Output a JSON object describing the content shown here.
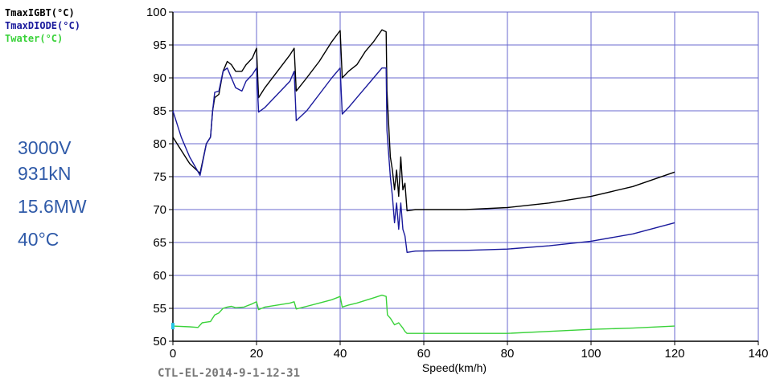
{
  "chart_data": {
    "type": "line",
    "title": "",
    "xlabel": "Speed(km/h)",
    "ylabel": "",
    "xlim": [
      0,
      140
    ],
    "ylim": [
      50,
      100
    ],
    "x_ticks": [
      0,
      20,
      40,
      60,
      80,
      100,
      120,
      140
    ],
    "y_ticks": [
      50,
      55,
      60,
      65,
      70,
      75,
      80,
      85,
      90,
      95,
      100
    ],
    "grid": true,
    "legend_position": "top-left",
    "footer": "CTL-EL-2014-9-1-12-31",
    "annotations": [
      "3000V",
      "931kN",
      "15.6MW",
      "40°C"
    ],
    "annotation_color": "#2f5aa8",
    "series": [
      {
        "name": "TmaxIGBT(°C)",
        "color": "#000000",
        "points": [
          [
            0,
            81
          ],
          [
            2,
            79
          ],
          [
            4,
            77
          ],
          [
            6.5,
            75.5
          ],
          [
            8,
            80
          ],
          [
            9,
            81
          ],
          [
            9.5,
            85
          ],
          [
            10,
            87
          ],
          [
            11,
            87.5
          ],
          [
            12,
            91
          ],
          [
            13,
            92.5
          ],
          [
            14,
            92
          ],
          [
            15,
            91
          ],
          [
            16.5,
            91
          ],
          [
            17.5,
            92
          ],
          [
            19,
            93
          ],
          [
            20,
            94.5
          ],
          [
            20.5,
            87
          ],
          [
            22,
            88.5
          ],
          [
            25,
            91
          ],
          [
            28,
            93.5
          ],
          [
            29,
            94.5
          ],
          [
            29.5,
            88
          ],
          [
            32,
            90
          ],
          [
            35,
            92.5
          ],
          [
            38,
            95.5
          ],
          [
            40,
            97.2
          ],
          [
            40.5,
            90
          ],
          [
            42,
            91
          ],
          [
            44,
            92
          ],
          [
            46,
            94
          ],
          [
            48,
            95.5
          ],
          [
            50,
            97.3
          ],
          [
            51,
            97
          ],
          [
            51.2,
            88
          ],
          [
            52,
            78
          ],
          [
            52.5,
            76
          ],
          [
            53,
            73
          ],
          [
            53.5,
            76
          ],
          [
            54,
            72
          ],
          [
            54.5,
            78
          ],
          [
            55,
            73
          ],
          [
            55.5,
            74
          ],
          [
            56,
            69.8
          ],
          [
            58,
            70
          ],
          [
            60,
            70
          ],
          [
            70,
            70
          ],
          [
            80,
            70.3
          ],
          [
            90,
            71
          ],
          [
            100,
            72
          ],
          [
            110,
            73.5
          ],
          [
            120,
            75.7
          ]
        ]
      },
      {
        "name": "TmaxDIODE(°C)",
        "color": "#1a1a9c",
        "points": [
          [
            0,
            85
          ],
          [
            2,
            81
          ],
          [
            4,
            78
          ],
          [
            6.5,
            75.2
          ],
          [
            8,
            80
          ],
          [
            9,
            81
          ],
          [
            9.5,
            85
          ],
          [
            10,
            87.8
          ],
          [
            11,
            88
          ],
          [
            12,
            91
          ],
          [
            13,
            91.5
          ],
          [
            14,
            90
          ],
          [
            15,
            88.5
          ],
          [
            16.5,
            88
          ],
          [
            17.5,
            89.5
          ],
          [
            19,
            90.5
          ],
          [
            20,
            91.5
          ],
          [
            20.5,
            84.8
          ],
          [
            22,
            85.5
          ],
          [
            25,
            87.5
          ],
          [
            28,
            89.5
          ],
          [
            29,
            91
          ],
          [
            29.5,
            83.5
          ],
          [
            32,
            85
          ],
          [
            35,
            87.5
          ],
          [
            38,
            90
          ],
          [
            40,
            91.5
          ],
          [
            40.5,
            84.5
          ],
          [
            42,
            85.5
          ],
          [
            44,
            87
          ],
          [
            46,
            88.5
          ],
          [
            48,
            90
          ],
          [
            50,
            91.5
          ],
          [
            51,
            91.5
          ],
          [
            51.2,
            82
          ],
          [
            52,
            75
          ],
          [
            52.5,
            72
          ],
          [
            53,
            68
          ],
          [
            53.5,
            71
          ],
          [
            54,
            67
          ],
          [
            54.5,
            71
          ],
          [
            55,
            67
          ],
          [
            55.5,
            66
          ],
          [
            56,
            63.5
          ],
          [
            58,
            63.7
          ],
          [
            70,
            63.8
          ],
          [
            80,
            64
          ],
          [
            90,
            64.5
          ],
          [
            100,
            65.2
          ],
          [
            110,
            66.3
          ],
          [
            120,
            68
          ]
        ]
      },
      {
        "name": "Twater(°C)",
        "color": "#3ad23a",
        "points": [
          [
            0,
            52.3
          ],
          [
            4,
            52.2
          ],
          [
            6,
            52.1
          ],
          [
            7,
            52.8
          ],
          [
            9,
            53
          ],
          [
            10,
            54
          ],
          [
            11,
            54.3
          ],
          [
            12,
            55
          ],
          [
            13,
            55.2
          ],
          [
            14,
            55.3
          ],
          [
            15,
            55.1
          ],
          [
            17,
            55.2
          ],
          [
            19,
            55.7
          ],
          [
            20,
            56
          ],
          [
            20.5,
            54.8
          ],
          [
            22,
            55.2
          ],
          [
            25,
            55.5
          ],
          [
            28,
            55.8
          ],
          [
            29,
            56
          ],
          [
            29.5,
            54.9
          ],
          [
            32,
            55.3
          ],
          [
            35,
            55.8
          ],
          [
            38,
            56.3
          ],
          [
            40,
            56.8
          ],
          [
            40.5,
            55.2
          ],
          [
            42,
            55.5
          ],
          [
            44,
            55.8
          ],
          [
            46,
            56.2
          ],
          [
            48,
            56.6
          ],
          [
            50,
            57
          ],
          [
            51,
            56.8
          ],
          [
            51.3,
            54
          ],
          [
            52,
            53.5
          ],
          [
            53,
            52.5
          ],
          [
            54,
            52.8
          ],
          [
            55,
            52
          ],
          [
            55.5,
            51.5
          ],
          [
            56,
            51.2
          ],
          [
            60,
            51.2
          ],
          [
            80,
            51.2
          ],
          [
            90,
            51.5
          ],
          [
            100,
            51.8
          ],
          [
            110,
            52
          ],
          [
            120,
            52.3
          ]
        ]
      }
    ]
  }
}
